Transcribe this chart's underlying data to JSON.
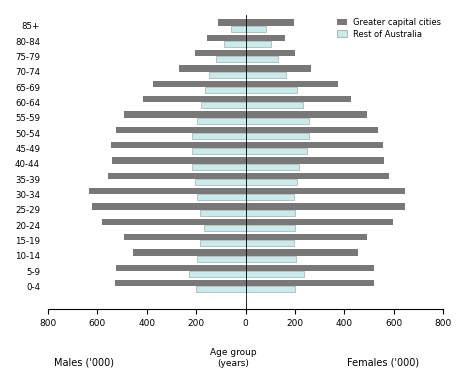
{
  "age_groups": [
    "0-4",
    "5-9",
    "10-14",
    "15-19",
    "20-24",
    "25-29",
    "30-34",
    "35-39",
    "40-44",
    "45-49",
    "50-54",
    "55-59",
    "60-64",
    "65-69",
    "70-74",
    "75-79",
    "80-84",
    "85+"
  ],
  "male_capital": [
    530,
    525,
    455,
    490,
    580,
    620,
    635,
    555,
    540,
    545,
    525,
    490,
    415,
    375,
    270,
    205,
    155,
    110
  ],
  "male_rest": [
    200,
    230,
    195,
    185,
    170,
    185,
    195,
    205,
    215,
    215,
    215,
    195,
    180,
    165,
    148,
    120,
    88,
    58
  ],
  "female_capital": [
    520,
    520,
    455,
    490,
    595,
    645,
    645,
    580,
    560,
    555,
    535,
    490,
    425,
    375,
    265,
    200,
    158,
    195
  ],
  "female_rest": [
    200,
    235,
    205,
    195,
    200,
    200,
    195,
    210,
    215,
    248,
    255,
    258,
    232,
    208,
    163,
    132,
    102,
    82
  ],
  "color_capital": "#787878",
  "color_rest": "#c8ecec",
  "color_rest_edge": "#999999",
  "xlabel_left": "Males ('000)",
  "xlabel_right": "Females ('000)",
  "xlabel_center": "Age group\n(years)",
  "xlim": 800,
  "bh_cap": 0.42,
  "bh_rest": 0.38
}
